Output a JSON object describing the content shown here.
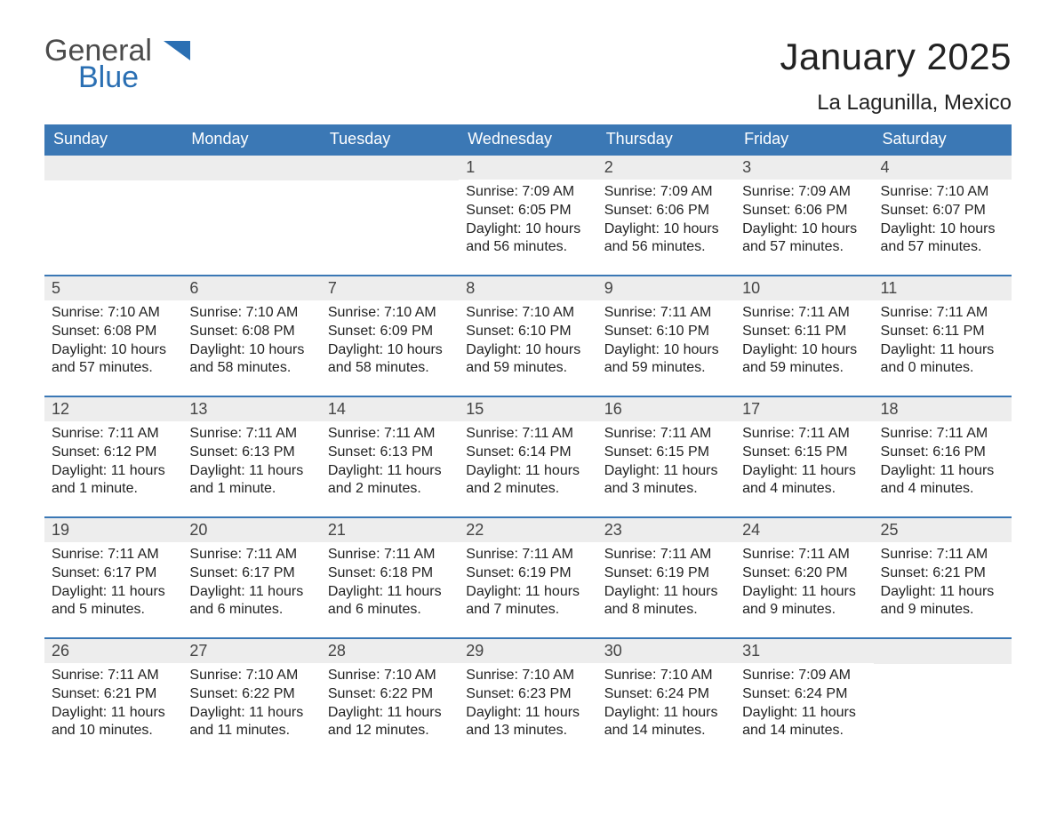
{
  "logo": {
    "general": "General",
    "blue": "Blue"
  },
  "title": "January 2025",
  "location": "La Lagunilla, Mexico",
  "colors": {
    "header_bg": "#3b78b5",
    "header_text": "#ffffff",
    "daynum_bg": "#ededed",
    "row_border": "#3b78b5",
    "body_text": "#222222",
    "logo_gray": "#4b4b4b",
    "logo_blue": "#2a6fb3",
    "background": "#ffffff"
  },
  "typography": {
    "title_fontsize": 42,
    "location_fontsize": 24,
    "weekday_fontsize": 18,
    "daynum_fontsize": 18,
    "body_fontsize": 16,
    "font_family": "Arial"
  },
  "weekdays": [
    "Sunday",
    "Monday",
    "Tuesday",
    "Wednesday",
    "Thursday",
    "Friday",
    "Saturday"
  ],
  "weeks": [
    [
      null,
      null,
      null,
      {
        "n": "1",
        "sr": "Sunrise: 7:09 AM",
        "ss": "Sunset: 6:05 PM",
        "d1": "Daylight: 10 hours",
        "d2": "and 56 minutes."
      },
      {
        "n": "2",
        "sr": "Sunrise: 7:09 AM",
        "ss": "Sunset: 6:06 PM",
        "d1": "Daylight: 10 hours",
        "d2": "and 56 minutes."
      },
      {
        "n": "3",
        "sr": "Sunrise: 7:09 AM",
        "ss": "Sunset: 6:06 PM",
        "d1": "Daylight: 10 hours",
        "d2": "and 57 minutes."
      },
      {
        "n": "4",
        "sr": "Sunrise: 7:10 AM",
        "ss": "Sunset: 6:07 PM",
        "d1": "Daylight: 10 hours",
        "d2": "and 57 minutes."
      }
    ],
    [
      {
        "n": "5",
        "sr": "Sunrise: 7:10 AM",
        "ss": "Sunset: 6:08 PM",
        "d1": "Daylight: 10 hours",
        "d2": "and 57 minutes."
      },
      {
        "n": "6",
        "sr": "Sunrise: 7:10 AM",
        "ss": "Sunset: 6:08 PM",
        "d1": "Daylight: 10 hours",
        "d2": "and 58 minutes."
      },
      {
        "n": "7",
        "sr": "Sunrise: 7:10 AM",
        "ss": "Sunset: 6:09 PM",
        "d1": "Daylight: 10 hours",
        "d2": "and 58 minutes."
      },
      {
        "n": "8",
        "sr": "Sunrise: 7:10 AM",
        "ss": "Sunset: 6:10 PM",
        "d1": "Daylight: 10 hours",
        "d2": "and 59 minutes."
      },
      {
        "n": "9",
        "sr": "Sunrise: 7:11 AM",
        "ss": "Sunset: 6:10 PM",
        "d1": "Daylight: 10 hours",
        "d2": "and 59 minutes."
      },
      {
        "n": "10",
        "sr": "Sunrise: 7:11 AM",
        "ss": "Sunset: 6:11 PM",
        "d1": "Daylight: 10 hours",
        "d2": "and 59 minutes."
      },
      {
        "n": "11",
        "sr": "Sunrise: 7:11 AM",
        "ss": "Sunset: 6:11 PM",
        "d1": "Daylight: 11 hours",
        "d2": "and 0 minutes."
      }
    ],
    [
      {
        "n": "12",
        "sr": "Sunrise: 7:11 AM",
        "ss": "Sunset: 6:12 PM",
        "d1": "Daylight: 11 hours",
        "d2": "and 1 minute."
      },
      {
        "n": "13",
        "sr": "Sunrise: 7:11 AM",
        "ss": "Sunset: 6:13 PM",
        "d1": "Daylight: 11 hours",
        "d2": "and 1 minute."
      },
      {
        "n": "14",
        "sr": "Sunrise: 7:11 AM",
        "ss": "Sunset: 6:13 PM",
        "d1": "Daylight: 11 hours",
        "d2": "and 2 minutes."
      },
      {
        "n": "15",
        "sr": "Sunrise: 7:11 AM",
        "ss": "Sunset: 6:14 PM",
        "d1": "Daylight: 11 hours",
        "d2": "and 2 minutes."
      },
      {
        "n": "16",
        "sr": "Sunrise: 7:11 AM",
        "ss": "Sunset: 6:15 PM",
        "d1": "Daylight: 11 hours",
        "d2": "and 3 minutes."
      },
      {
        "n": "17",
        "sr": "Sunrise: 7:11 AM",
        "ss": "Sunset: 6:15 PM",
        "d1": "Daylight: 11 hours",
        "d2": "and 4 minutes."
      },
      {
        "n": "18",
        "sr": "Sunrise: 7:11 AM",
        "ss": "Sunset: 6:16 PM",
        "d1": "Daylight: 11 hours",
        "d2": "and 4 minutes."
      }
    ],
    [
      {
        "n": "19",
        "sr": "Sunrise: 7:11 AM",
        "ss": "Sunset: 6:17 PM",
        "d1": "Daylight: 11 hours",
        "d2": "and 5 minutes."
      },
      {
        "n": "20",
        "sr": "Sunrise: 7:11 AM",
        "ss": "Sunset: 6:17 PM",
        "d1": "Daylight: 11 hours",
        "d2": "and 6 minutes."
      },
      {
        "n": "21",
        "sr": "Sunrise: 7:11 AM",
        "ss": "Sunset: 6:18 PM",
        "d1": "Daylight: 11 hours",
        "d2": "and 6 minutes."
      },
      {
        "n": "22",
        "sr": "Sunrise: 7:11 AM",
        "ss": "Sunset: 6:19 PM",
        "d1": "Daylight: 11 hours",
        "d2": "and 7 minutes."
      },
      {
        "n": "23",
        "sr": "Sunrise: 7:11 AM",
        "ss": "Sunset: 6:19 PM",
        "d1": "Daylight: 11 hours",
        "d2": "and 8 minutes."
      },
      {
        "n": "24",
        "sr": "Sunrise: 7:11 AM",
        "ss": "Sunset: 6:20 PM",
        "d1": "Daylight: 11 hours",
        "d2": "and 9 minutes."
      },
      {
        "n": "25",
        "sr": "Sunrise: 7:11 AM",
        "ss": "Sunset: 6:21 PM",
        "d1": "Daylight: 11 hours",
        "d2": "and 9 minutes."
      }
    ],
    [
      {
        "n": "26",
        "sr": "Sunrise: 7:11 AM",
        "ss": "Sunset: 6:21 PM",
        "d1": "Daylight: 11 hours",
        "d2": "and 10 minutes."
      },
      {
        "n": "27",
        "sr": "Sunrise: 7:10 AM",
        "ss": "Sunset: 6:22 PM",
        "d1": "Daylight: 11 hours",
        "d2": "and 11 minutes."
      },
      {
        "n": "28",
        "sr": "Sunrise: 7:10 AM",
        "ss": "Sunset: 6:22 PM",
        "d1": "Daylight: 11 hours",
        "d2": "and 12 minutes."
      },
      {
        "n": "29",
        "sr": "Sunrise: 7:10 AM",
        "ss": "Sunset: 6:23 PM",
        "d1": "Daylight: 11 hours",
        "d2": "and 13 minutes."
      },
      {
        "n": "30",
        "sr": "Sunrise: 7:10 AM",
        "ss": "Sunset: 6:24 PM",
        "d1": "Daylight: 11 hours",
        "d2": "and 14 minutes."
      },
      {
        "n": "31",
        "sr": "Sunrise: 7:09 AM",
        "ss": "Sunset: 6:24 PM",
        "d1": "Daylight: 11 hours",
        "d2": "and 14 minutes."
      },
      null
    ]
  ]
}
